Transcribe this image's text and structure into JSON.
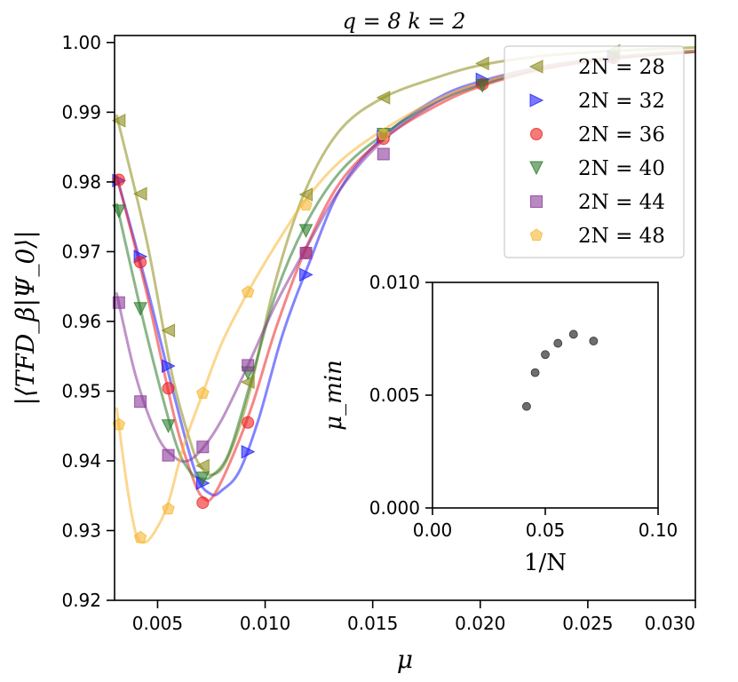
{
  "chart_data": [
    {
      "type": "line",
      "title": "q = 8       k = 2",
      "xlabel": "μ",
      "ylabel": "|⟨TFD_β|Ψ_0⟩|",
      "xlim": [
        0.003,
        0.03
      ],
      "ylim": [
        0.92,
        1.001
      ],
      "xticks": [
        0.005,
        0.01,
        0.015,
        0.02,
        0.025,
        0.03
      ],
      "xtick_labels": [
        "0.005",
        "0.010",
        "0.015",
        "0.020",
        "0.025",
        "0.030"
      ],
      "yticks": [
        0.92,
        0.93,
        0.94,
        0.95,
        0.96,
        0.97,
        0.98,
        0.99,
        1.0
      ],
      "ytick_labels": [
        "0.92",
        "0.93",
        "0.94",
        "0.95",
        "0.96",
        "0.97",
        "0.98",
        "0.99",
        "1.00"
      ],
      "grid": false,
      "legend_position": "top-right",
      "series": [
        {
          "name": "2N = 28",
          "color": "#8c8c1a",
          "marker": "triangle-left",
          "points": [
            [
              0.0032,
              0.9888
            ],
            [
              0.0042,
              0.9783
            ],
            [
              0.0055,
              0.9587
            ],
            [
              0.0071,
              0.9393
            ],
            [
              0.0092,
              0.9513
            ],
            [
              0.0119,
              0.9782
            ],
            [
              0.0155,
              0.9921
            ],
            [
              0.0201,
              0.997
            ],
            [
              0.0262,
              0.9988
            ]
          ],
          "curve": [
            [
              0.0031,
              0.9895
            ],
            [
              0.0045,
              0.9715
            ],
            [
              0.0057,
              0.952
            ],
            [
              0.0066,
              0.942
            ],
            [
              0.007,
              0.9392
            ],
            [
              0.0075,
              0.938
            ],
            [
              0.0082,
              0.94
            ],
            [
              0.0092,
              0.949
            ],
            [
              0.0105,
              0.966
            ],
            [
              0.0119,
              0.979
            ],
            [
              0.0135,
              0.9875
            ],
            [
              0.0155,
              0.9921
            ],
            [
              0.018,
              0.995
            ],
            [
              0.0201,
              0.9968
            ],
            [
              0.023,
              0.9981
            ],
            [
              0.0262,
              0.9988
            ],
            [
              0.03,
              0.9993
            ]
          ]
        },
        {
          "name": "2N = 32",
          "color": "#1f1fff",
          "marker": "triangle-right",
          "points": [
            [
              0.0032,
              0.9802
            ],
            [
              0.0042,
              0.9693
            ],
            [
              0.0055,
              0.9536
            ],
            [
              0.0071,
              0.9368
            ],
            [
              0.0092,
              0.9413
            ],
            [
              0.0119,
              0.9667
            ],
            [
              0.0155,
              0.9865
            ],
            [
              0.0201,
              0.9947
            ],
            [
              0.0262,
              0.998
            ]
          ],
          "curve": [
            [
              0.0031,
              0.9808
            ],
            [
              0.0045,
              0.965
            ],
            [
              0.0058,
              0.949
            ],
            [
              0.0068,
              0.938
            ],
            [
              0.0075,
              0.9352
            ],
            [
              0.008,
              0.9358
            ],
            [
              0.0088,
              0.9385
            ],
            [
              0.0097,
              0.946
            ],
            [
              0.0108,
              0.958
            ],
            [
              0.012,
              0.968
            ],
            [
              0.0135,
              0.979
            ],
            [
              0.0155,
              0.9865
            ],
            [
              0.018,
              0.992
            ],
            [
              0.0201,
              0.9945
            ],
            [
              0.023,
              0.9966
            ],
            [
              0.0262,
              0.9979
            ],
            [
              0.03,
              0.9988
            ]
          ]
        },
        {
          "name": "2N = 36",
          "color": "#ee2222",
          "marker": "circle",
          "points": [
            [
              0.0032,
              0.9803
            ],
            [
              0.0042,
              0.9685
            ],
            [
              0.0055,
              0.9504
            ],
            [
              0.0071,
              0.934
            ],
            [
              0.0092,
              0.9455
            ],
            [
              0.0119,
              0.9699
            ],
            [
              0.0155,
              0.9862
            ],
            [
              0.0201,
              0.994
            ],
            [
              0.0262,
              0.9978
            ]
          ],
          "curve": [
            [
              0.0031,
              0.9808
            ],
            [
              0.0045,
              0.964
            ],
            [
              0.0058,
              0.946
            ],
            [
              0.0067,
              0.937
            ],
            [
              0.0072,
              0.9345
            ],
            [
              0.0076,
              0.935
            ],
            [
              0.0084,
              0.94
            ],
            [
              0.0094,
              0.948
            ],
            [
              0.0105,
              0.959
            ],
            [
              0.0119,
              0.9705
            ],
            [
              0.0135,
              0.98
            ],
            [
              0.0155,
              0.9862
            ],
            [
              0.018,
              0.991
            ],
            [
              0.0201,
              0.9938
            ],
            [
              0.023,
              0.9962
            ],
            [
              0.0262,
              0.9977
            ],
            [
              0.03,
              0.9987
            ]
          ]
        },
        {
          "name": "2N = 40",
          "color": "#2a7a2a",
          "marker": "triangle-down",
          "points": [
            [
              0.0032,
              0.9758
            ],
            [
              0.0042,
              0.9618
            ],
            [
              0.0055,
              0.945
            ],
            [
              0.0071,
              0.9375
            ],
            [
              0.0092,
              0.9526
            ],
            [
              0.0119,
              0.973
            ],
            [
              0.0155,
              0.9868
            ],
            [
              0.0201,
              0.9938
            ],
            [
              0.0262,
              0.9978
            ]
          ],
          "curve": [
            [
              0.0031,
              0.9768
            ],
            [
              0.0045,
              0.958
            ],
            [
              0.0058,
              0.943
            ],
            [
              0.0065,
              0.9385
            ],
            [
              0.007,
              0.9375
            ],
            [
              0.0075,
              0.9378
            ],
            [
              0.0083,
              0.941
            ],
            [
              0.0093,
              0.951
            ],
            [
              0.0105,
              0.964
            ],
            [
              0.0119,
              0.974
            ],
            [
              0.0135,
              0.9815
            ],
            [
              0.0155,
              0.9868
            ],
            [
              0.018,
              0.9915
            ],
            [
              0.0201,
              0.994
            ],
            [
              0.023,
              0.9964
            ],
            [
              0.0262,
              0.9978
            ],
            [
              0.03,
              0.9987
            ]
          ]
        },
        {
          "name": "2N = 44",
          "color": "#8b3a9a",
          "marker": "square",
          "points": [
            [
              0.0032,
              0.9627
            ],
            [
              0.0042,
              0.9485
            ],
            [
              0.0055,
              0.9408
            ],
            [
              0.0071,
              0.942
            ],
            [
              0.0092,
              0.9537
            ],
            [
              0.0119,
              0.9698
            ],
            [
              0.0155,
              0.984
            ]
          ],
          "curve": [
            [
              0.0031,
              0.964
            ],
            [
              0.004,
              0.952
            ],
            [
              0.005,
              0.9435
            ],
            [
              0.0058,
              0.9405
            ],
            [
              0.0064,
              0.94
            ],
            [
              0.0071,
              0.9418
            ],
            [
              0.008,
              0.946
            ],
            [
              0.0092,
              0.9537
            ],
            [
              0.0105,
              0.9625
            ],
            [
              0.0119,
              0.9705
            ],
            [
              0.0135,
              0.979
            ],
            [
              0.0155,
              0.986
            ],
            [
              0.018,
              0.9915
            ],
            [
              0.0201,
              0.9942
            ],
            [
              0.023,
              0.9964
            ],
            [
              0.0262,
              0.9978
            ],
            [
              0.03,
              0.9987
            ]
          ]
        },
        {
          "name": "2N = 48",
          "color": "#f7b733",
          "marker": "pentagon",
          "points": [
            [
              0.0032,
              0.9452
            ],
            [
              0.0042,
              0.929
            ],
            [
              0.0055,
              0.9331
            ],
            [
              0.0071,
              0.9497
            ],
            [
              0.0092,
              0.9642
            ],
            [
              0.0119,
              0.9767
            ],
            [
              0.0155,
              0.9868
            ]
          ],
          "curve": [
            [
              0.0031,
              0.9475
            ],
            [
              0.0036,
              0.936
            ],
            [
              0.004,
              0.9295
            ],
            [
              0.0044,
              0.9283
            ],
            [
              0.0049,
              0.93
            ],
            [
              0.0055,
              0.934
            ],
            [
              0.0062,
              0.942
            ],
            [
              0.0071,
              0.9497
            ],
            [
              0.008,
              0.957
            ],
            [
              0.0092,
              0.9642
            ],
            [
              0.0105,
              0.971
            ],
            [
              0.0119,
              0.9775
            ],
            [
              0.0135,
              0.983
            ],
            [
              0.0155,
              0.9875
            ],
            [
              0.018,
              0.9918
            ],
            [
              0.0201,
              0.9943
            ],
            [
              0.023,
              0.9965
            ],
            [
              0.0262,
              0.9979
            ],
            [
              0.03,
              0.9988
            ]
          ]
        }
      ]
    },
    {
      "type": "scatter",
      "title": "",
      "xlabel": "1/N",
      "ylabel": "μ_min",
      "xlim": [
        0.0,
        0.1
      ],
      "ylim": [
        0.0,
        0.01
      ],
      "xticks": [
        0.0,
        0.05,
        0.1
      ],
      "xtick_labels": [
        "0.00",
        "0.05",
        "0.10"
      ],
      "yticks": [
        0.0,
        0.005,
        0.01
      ],
      "ytick_labels": [
        "0.000",
        "0.005",
        "0.010"
      ],
      "color": "#555555",
      "x": [
        0.0417,
        0.0455,
        0.05,
        0.0556,
        0.0625,
        0.0714
      ],
      "y": [
        0.0045,
        0.006,
        0.0068,
        0.0073,
        0.0077,
        0.0074
      ]
    }
  ]
}
